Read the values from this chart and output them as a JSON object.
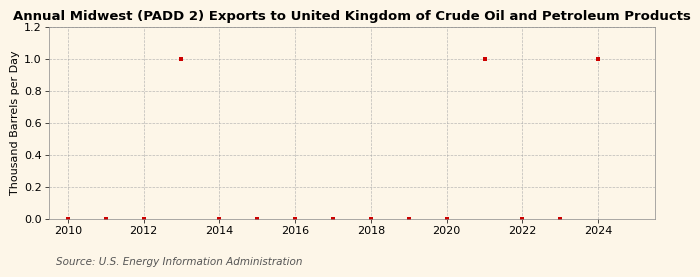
{
  "title": "Annual Midwest (PADD 2) Exports to United Kingdom of Crude Oil and Petroleum Products",
  "ylabel": "Thousand Barrels per Day",
  "source": "Source: U.S. Energy Information Administration",
  "background_color": "#fdf6e8",
  "xlim": [
    2009.5,
    2025.5
  ],
  "ylim": [
    0.0,
    1.2
  ],
  "yticks": [
    0.0,
    0.2,
    0.4,
    0.6,
    0.8,
    1.0,
    1.2
  ],
  "xticks": [
    2010,
    2012,
    2014,
    2016,
    2018,
    2020,
    2022,
    2024
  ],
  "x_data": [
    2010,
    2011,
    2012,
    2013,
    2014,
    2015,
    2016,
    2017,
    2018,
    2019,
    2020,
    2021,
    2022,
    2023,
    2024
  ],
  "y_data": [
    0.0,
    0.0,
    0.0,
    1.0,
    0.0,
    0.0,
    0.0,
    0.0,
    0.0,
    0.0,
    0.0,
    1.0,
    0.0,
    0.0,
    1.0
  ],
  "marker_color": "#cc0000",
  "marker_size": 3.5,
  "title_fontsize": 9.5,
  "label_fontsize": 8,
  "tick_fontsize": 8,
  "source_fontsize": 7.5,
  "grid_color": "#aaaaaa",
  "spine_color": "#888888"
}
